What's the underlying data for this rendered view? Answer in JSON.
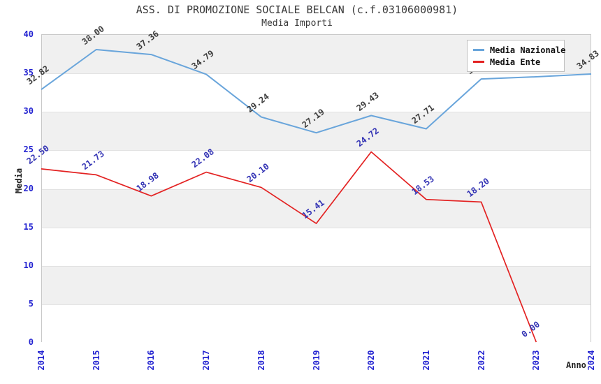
{
  "header": {
    "title": "ASS. DI PROMOZIONE SOCIALE BELCAN (c.f.03106000981)",
    "subtitle": "Media Importi"
  },
  "chart_data": {
    "type": "line",
    "x": [
      "2014",
      "2015",
      "2016",
      "2017",
      "2018",
      "2019",
      "2020",
      "2021",
      "2022",
      "2023",
      "2024"
    ],
    "xlabel": "Anno",
    "ylabel": "Media",
    "ylim": [
      0,
      40
    ],
    "yticks": [
      0,
      5,
      10,
      15,
      20,
      25,
      30,
      35,
      40
    ],
    "grid": "alternating-horizontal-bands",
    "legend": {
      "position": "top-right",
      "entries": [
        "Media Nazionale",
        "Media Ente"
      ]
    },
    "series": [
      {
        "name": "Media Nazionale",
        "color": "#69a5db",
        "label_color": "#3d3d3d",
        "stroke_width": 2,
        "values": [
          32.82,
          38.0,
          37.36,
          34.79,
          29.24,
          27.19,
          29.43,
          27.71,
          34.19,
          34.47,
          34.83
        ],
        "labels_hidden_by_legend_indices": [
          8,
          9
        ]
      },
      {
        "name": "Media Ente",
        "color": "#e32222",
        "label_color": "#3232b4",
        "stroke_width": 1.7,
        "values": [
          22.5,
          21.73,
          18.98,
          22.08,
          20.1,
          15.41,
          24.72,
          18.53,
          18.2,
          0.0,
          null
        ],
        "labels_hidden_by_legend_indices": []
      }
    ],
    "colors": {
      "tick_label": "#2323d1",
      "band_gray": "#f0f0f0",
      "band_white": "#ffffff",
      "plot_border": "#c8c8c8",
      "title_text": "#3a3a3a"
    }
  }
}
